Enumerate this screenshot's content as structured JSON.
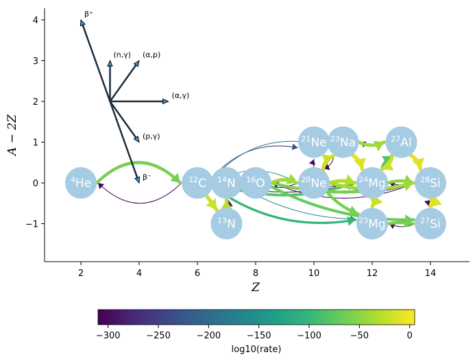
{
  "axes": {
    "xlabel": "Z",
    "ylabel": "A − 2Z",
    "xticks": [
      "2",
      "4",
      "6",
      "8",
      "10",
      "12",
      "14"
    ],
    "yticks": [
      "4",
      "3",
      "2",
      "1",
      "0",
      "−1"
    ]
  },
  "nuclei": [
    {
      "id": "he4",
      "mass": "4",
      "sym": "He",
      "z": 2,
      "y": 0
    },
    {
      "id": "c12",
      "mass": "12",
      "sym": "C",
      "z": 6,
      "y": 0
    },
    {
      "id": "n14",
      "mass": "14",
      "sym": "N",
      "z": 7,
      "y": 0
    },
    {
      "id": "o16",
      "mass": "16",
      "sym": "O",
      "z": 8,
      "y": 0
    },
    {
      "id": "ne20",
      "mass": "20",
      "sym": "Ne",
      "z": 10,
      "y": 0
    },
    {
      "id": "mg24",
      "mass": "24",
      "sym": "Mg",
      "z": 12,
      "y": 0
    },
    {
      "id": "si28",
      "mass": "28",
      "sym": "Si",
      "z": 14,
      "y": 0
    },
    {
      "id": "n13",
      "mass": "13",
      "sym": "N",
      "z": 7,
      "y": -1
    },
    {
      "id": "mg23",
      "mass": "23",
      "sym": "Mg",
      "z": 12,
      "y": -1
    },
    {
      "id": "si27",
      "mass": "27",
      "sym": "Si",
      "z": 14,
      "y": -1
    },
    {
      "id": "ne21",
      "mass": "21",
      "sym": "Ne",
      "z": 10,
      "y": 1
    },
    {
      "id": "na23",
      "mass": "23",
      "sym": "Na",
      "z": 11,
      "y": 1
    },
    {
      "id": "al27",
      "mass": "27",
      "sym": "Al",
      "z": 13,
      "y": 1
    }
  ],
  "legend_arrows": [
    {
      "label": "β⁺",
      "dz": -1,
      "dy": 2
    },
    {
      "label": "(n,γ)",
      "dz": 0,
      "dy": 1
    },
    {
      "label": "(α,p)",
      "dz": 1,
      "dy": 1
    },
    {
      "label": "(α,γ)",
      "dz": 2,
      "dy": 0
    },
    {
      "label": "(p,γ)",
      "dz": 1,
      "dy": -1
    },
    {
      "label": "β⁻",
      "dz": 1,
      "dy": -2
    }
  ],
  "colorbar": {
    "label": "log10(rate)",
    "ticks": [
      "−300",
      "−250",
      "−200",
      "−150",
      "−100",
      "−50",
      "0"
    ],
    "min": -310,
    "max": 5,
    "colors": [
      "#440154",
      "#482878",
      "#3e4989",
      "#31688e",
      "#26828e",
      "#1f9e89",
      "#35b779",
      "#6ece58",
      "#b5de2b",
      "#fde725"
    ]
  },
  "links": [
    {
      "from": "he4",
      "to": "c12",
      "rate": -60,
      "bend": 1
    },
    {
      "from": "c12",
      "to": "he4",
      "rate": -305,
      "bend": 1
    },
    {
      "from": "c12",
      "to": "o16",
      "rate": -20,
      "bend": 0.3
    },
    {
      "from": "c12",
      "to": "n13",
      "rate": -20,
      "bend": 0
    },
    {
      "from": "n13",
      "to": "n14",
      "rate": -30,
      "bend": 0
    },
    {
      "from": "n14",
      "to": "n13",
      "rate": -300,
      "bend": 0.4
    },
    {
      "from": "o16",
      "to": "ne20",
      "rate": -40,
      "bend": 0.3
    },
    {
      "from": "ne20",
      "to": "o16",
      "rate": -300,
      "bend": 0.3
    },
    {
      "from": "c12",
      "to": "ne20",
      "rate": -150,
      "bend": 0.6
    },
    {
      "from": "c12",
      "to": "na23",
      "rate": -190,
      "bend": 0.7
    },
    {
      "from": "c12",
      "to": "ne21",
      "rate": -240,
      "bend": 0.6
    },
    {
      "from": "c12",
      "to": "mg23",
      "rate": -100,
      "bend": -0.5
    },
    {
      "from": "c12",
      "to": "mg24",
      "rate": -80,
      "bend": -0.4
    },
    {
      "from": "o16",
      "to": "si28",
      "rate": -60,
      "bend": -0.3
    },
    {
      "from": "o16",
      "to": "si27",
      "rate": -70,
      "bend": -0.3
    },
    {
      "from": "n14",
      "to": "mg23",
      "rate": -160,
      "bend": -0.3
    },
    {
      "from": "ne20",
      "to": "mg24",
      "rate": -30,
      "bend": 0.2
    },
    {
      "from": "mg24",
      "to": "ne20",
      "rate": -300,
      "bend": 0.2
    },
    {
      "from": "ne20",
      "to": "na23",
      "rate": -20,
      "bend": 0.3
    },
    {
      "from": "ne20",
      "to": "ne21",
      "rate": -300,
      "bend": 0.1
    },
    {
      "from": "ne20",
      "to": "mg23",
      "rate": -60,
      "bend": -0.2
    },
    {
      "from": "ne21",
      "to": "na23",
      "rate": -300,
      "bend": 0.3
    },
    {
      "from": "na23",
      "to": "mg24",
      "rate": -10,
      "bend": 0.2
    },
    {
      "from": "na23",
      "to": "al27",
      "rate": -40,
      "bend": -0.3
    },
    {
      "from": "al27",
      "to": "na23",
      "rate": -300,
      "bend": 0.3
    },
    {
      "from": "mg24",
      "to": "al27",
      "rate": -80,
      "bend": 0.2
    },
    {
      "from": "mg24",
      "to": "si28",
      "rate": -50,
      "bend": 0.2
    },
    {
      "from": "si28",
      "to": "mg24",
      "rate": -300,
      "bend": 0.2
    },
    {
      "from": "mg23",
      "to": "si27",
      "rate": -60,
      "bend": 0.1
    },
    {
      "from": "si27",
      "to": "mg23",
      "rate": -300,
      "bend": 0.3
    },
    {
      "from": "al27",
      "to": "si28",
      "rate": -10,
      "bend": 0.2
    },
    {
      "from": "si28",
      "to": "si27",
      "rate": -10,
      "bend": 0.3
    },
    {
      "from": "si27",
      "to": "si28",
      "rate": -300,
      "bend": 0.3
    },
    {
      "from": "mg24",
      "to": "mg23",
      "rate": -20,
      "bend": 0.2
    },
    {
      "from": "si28",
      "to": "ne20",
      "rate": -300,
      "bend": 0.4
    },
    {
      "from": "ne20",
      "to": "si28",
      "rate": -40,
      "bend": -0.3
    },
    {
      "from": "al27",
      "to": "mg24",
      "rate": -20,
      "bend": 0.3
    },
    {
      "from": "na23",
      "to": "ne20",
      "rate": -300,
      "bend": 0.3
    },
    {
      "from": "si28",
      "to": "o16",
      "rate": -300,
      "bend": 0.5
    },
    {
      "from": "mg24",
      "to": "c12",
      "rate": -300,
      "bend": 0.3
    },
    {
      "from": "mg24",
      "to": "n14",
      "rate": -300,
      "bend": 0.2
    }
  ]
}
